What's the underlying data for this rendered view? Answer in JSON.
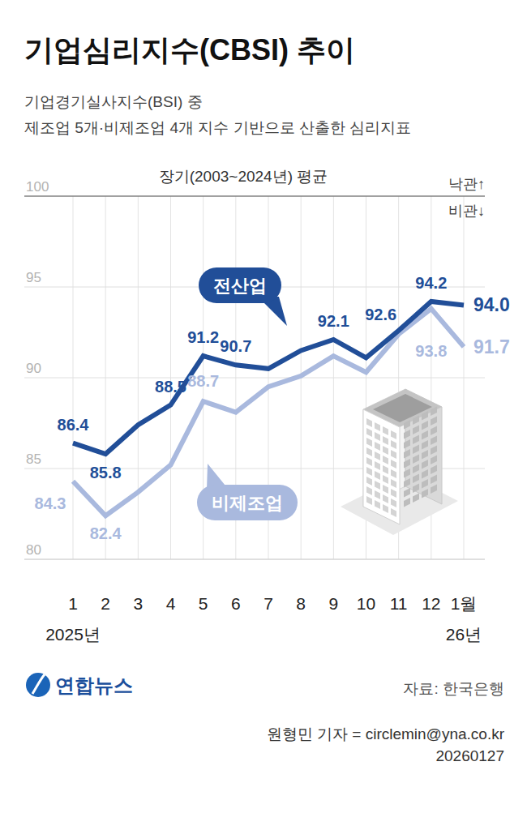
{
  "chart_data": {
    "type": "line",
    "title": "기업심리지수(CBSI) 추이",
    "subtitle": [
      "기업경기실사지수(BSI) 중",
      "제조업 5개·비제조업 4개 지수 기반으로 산출한 심리지표"
    ],
    "categories": [
      "1",
      "2",
      "3",
      "4",
      "5",
      "6",
      "7",
      "8",
      "9",
      "10",
      "11",
      "12",
      "1월"
    ],
    "x_year_labels": [
      "2025년",
      "26년"
    ],
    "series": [
      {
        "name": "전산업",
        "color": "#214e98",
        "values": [
          86.4,
          85.8,
          87.4,
          88.5,
          91.2,
          90.7,
          90.5,
          91.5,
          92.1,
          91.1,
          92.6,
          94.2,
          94.0
        ],
        "value_labels": [
          "86.4",
          "85.8",
          null,
          "88.5",
          "91.2",
          "90.7",
          null,
          null,
          "92.1",
          null,
          "92.6",
          "94.2",
          "94.0"
        ]
      },
      {
        "name": "비제조업",
        "color": "#a9b9de",
        "values": [
          84.3,
          82.4,
          83.7,
          85.2,
          88.7,
          88.1,
          89.5,
          90.1,
          91.2,
          90.3,
          92.4,
          93.8,
          91.7
        ],
        "value_labels": [
          "84.3",
          "82.4",
          null,
          null,
          "88.7",
          null,
          null,
          null,
          null,
          null,
          null,
          "93.8",
          "91.7"
        ]
      }
    ],
    "ylim": [
      80,
      100
    ],
    "yticks": [
      80,
      85,
      90,
      95,
      100
    ],
    "grid": true,
    "data_labels": true,
    "reference_line": {
      "value": 100,
      "label": "장기(2003~2024년) 평균"
    },
    "annotations": [
      "낙관↑",
      "비관↓"
    ],
    "source": "자료: 한국은행",
    "logo": "연합뉴스",
    "credit": [
      "원형민 기자 = circlemin@yna.co.kr",
      "20260127"
    ]
  }
}
